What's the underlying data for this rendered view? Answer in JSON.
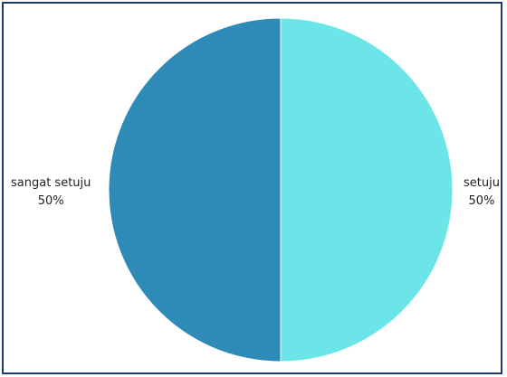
{
  "chart_data": {
    "type": "pie",
    "title": "",
    "slices": [
      {
        "label": "setuju",
        "value": 50,
        "percent_label": "50%",
        "color": "#6ce5e8"
      },
      {
        "label": "sangat setuju",
        "value": 50,
        "percent_label": "50%",
        "color": "#2e8bb8"
      }
    ],
    "start_angle_deg": 0,
    "direction": "clockwise",
    "legend": "none",
    "slice_stroke_color": "#ffffff"
  }
}
